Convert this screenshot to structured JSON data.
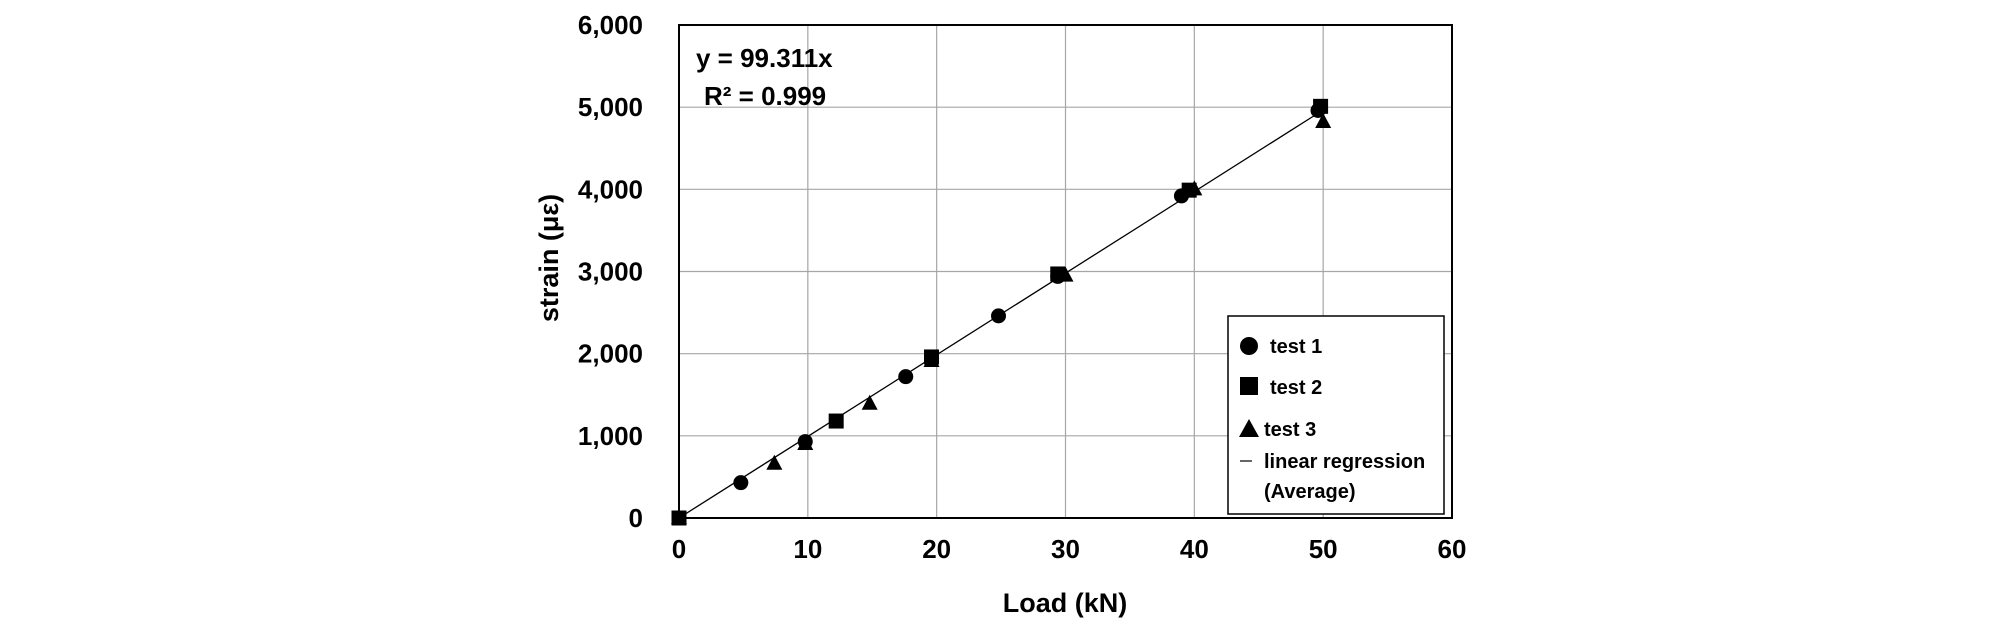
{
  "chart_data": {
    "type": "scatter",
    "title": "",
    "xlabel": "Load (kN)",
    "ylabel": "strain (με)",
    "xlim": [
      0,
      60
    ],
    "ylim": [
      0,
      6000
    ],
    "x_ticks": [
      "0",
      "10",
      "20",
      "30",
      "40",
      "50",
      "60"
    ],
    "y_ticks": [
      "0",
      "1,000",
      "2,000",
      "3,000",
      "4,000",
      "5,000",
      "6,000"
    ],
    "grid": true,
    "legend_position": "bottom-right",
    "annotations": {
      "equation": "y = 99.311x",
      "r_squared": "R² = 0.999"
    },
    "series": [
      {
        "name": "test 1",
        "marker": "circle",
        "x": [
          0,
          4.8,
          9.8,
          17.6,
          24.8,
          29.4,
          39.0,
          49.6
        ],
        "y": [
          0,
          430,
          930,
          1720,
          2460,
          2940,
          3920,
          4960
        ]
      },
      {
        "name": "test 2",
        "marker": "square",
        "x": [
          0,
          12.2,
          19.6,
          29.4,
          39.6,
          49.8
        ],
        "y": [
          0,
          1180,
          1960,
          2970,
          3990,
          5010
        ]
      },
      {
        "name": "test 3",
        "marker": "triangle",
        "x": [
          0,
          7.4,
          9.8,
          14.8,
          19.6,
          30.0,
          40.0,
          50.0
        ],
        "y": [
          0,
          660,
          900,
          1390,
          1910,
          2950,
          4000,
          4820
        ]
      }
    ],
    "regression": {
      "name": "linear regression",
      "name_line2": "(Average)",
      "slope": 99.311,
      "x_range": [
        0,
        50
      ]
    },
    "colors": {
      "marker": "#000000",
      "line": "#000000",
      "grid": "#a6a6a6",
      "frame": "#000000"
    }
  }
}
